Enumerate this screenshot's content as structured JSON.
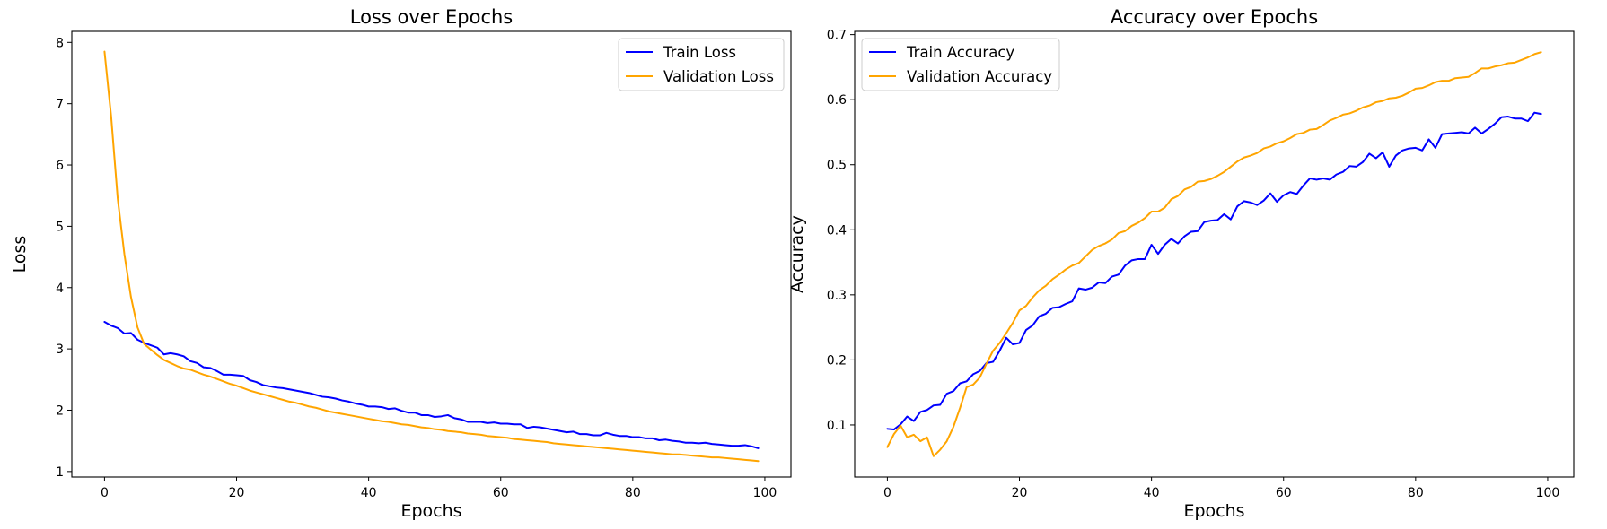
{
  "chart_data": [
    {
      "type": "line",
      "title": "Loss over Epochs",
      "xlabel": "Epochs",
      "ylabel": "Loss",
      "xlim": [
        -4.95,
        103.95
      ],
      "ylim": [
        0.91,
        8.18
      ],
      "xticks": [
        0,
        20,
        40,
        60,
        80,
        100
      ],
      "yticks": [
        1,
        2,
        3,
        4,
        5,
        6,
        7,
        8
      ],
      "grid": false,
      "legend_position": "upper right",
      "series": [
        {
          "name": "Train Loss",
          "color": "#0000ff",
          "x": [
            0,
            1,
            2,
            3,
            4,
            5,
            6,
            7,
            8,
            9,
            10,
            11,
            12,
            13,
            14,
            15,
            16,
            17,
            18,
            19,
            20,
            21,
            22,
            23,
            24,
            25,
            26,
            27,
            28,
            29,
            30,
            31,
            32,
            33,
            34,
            35,
            36,
            37,
            38,
            39,
            40,
            41,
            42,
            43,
            44,
            45,
            46,
            47,
            48,
            49,
            50,
            51,
            52,
            53,
            54,
            55,
            56,
            57,
            58,
            59,
            60,
            61,
            62,
            63,
            64,
            65,
            66,
            67,
            68,
            69,
            70,
            71,
            72,
            73,
            74,
            75,
            76,
            77,
            78,
            79,
            80,
            81,
            82,
            83,
            84,
            85,
            86,
            87,
            88,
            89,
            90,
            91,
            92,
            93,
            94,
            95,
            96,
            97,
            98,
            99
          ],
          "y": [
            3.44,
            3.38,
            3.34,
            3.25,
            3.26,
            3.15,
            3.1,
            3.06,
            3.02,
            2.91,
            2.93,
            2.91,
            2.88,
            2.8,
            2.77,
            2.7,
            2.69,
            2.64,
            2.58,
            2.58,
            2.57,
            2.56,
            2.49,
            2.46,
            2.41,
            2.39,
            2.37,
            2.36,
            2.34,
            2.32,
            2.3,
            2.28,
            2.25,
            2.22,
            2.21,
            2.19,
            2.16,
            2.14,
            2.11,
            2.09,
            2.06,
            2.06,
            2.05,
            2.02,
            2.03,
            1.99,
            1.96,
            1.96,
            1.92,
            1.92,
            1.89,
            1.9,
            1.92,
            1.87,
            1.85,
            1.81,
            1.81,
            1.81,
            1.79,
            1.8,
            1.78,
            1.78,
            1.77,
            1.77,
            1.71,
            1.73,
            1.72,
            1.7,
            1.68,
            1.66,
            1.64,
            1.65,
            1.61,
            1.61,
            1.59,
            1.59,
            1.63,
            1.6,
            1.58,
            1.58,
            1.56,
            1.56,
            1.54,
            1.54,
            1.51,
            1.52,
            1.5,
            1.49,
            1.47,
            1.47,
            1.46,
            1.47,
            1.45,
            1.44,
            1.43,
            1.42,
            1.42,
            1.43,
            1.41,
            1.38
          ]
        },
        {
          "name": "Validation Loss",
          "color": "#ffa500",
          "x": [
            0,
            1,
            2,
            3,
            4,
            5,
            6,
            7,
            8,
            9,
            10,
            11,
            12,
            13,
            14,
            15,
            16,
            17,
            18,
            19,
            20,
            21,
            22,
            23,
            24,
            25,
            26,
            27,
            28,
            29,
            30,
            31,
            32,
            33,
            34,
            35,
            36,
            37,
            38,
            39,
            40,
            41,
            42,
            43,
            44,
            45,
            46,
            47,
            48,
            49,
            50,
            51,
            52,
            53,
            54,
            55,
            56,
            57,
            58,
            59,
            60,
            61,
            62,
            63,
            64,
            65,
            66,
            67,
            68,
            69,
            70,
            71,
            72,
            73,
            74,
            75,
            76,
            77,
            78,
            79,
            80,
            81,
            82,
            83,
            84,
            85,
            86,
            87,
            88,
            89,
            90,
            91,
            92,
            93,
            94,
            95,
            96,
            97,
            98,
            99
          ],
          "y": [
            7.85,
            6.8,
            5.45,
            4.55,
            3.85,
            3.35,
            3.08,
            2.99,
            2.9,
            2.82,
            2.77,
            2.72,
            2.68,
            2.66,
            2.62,
            2.58,
            2.55,
            2.51,
            2.47,
            2.43,
            2.4,
            2.36,
            2.32,
            2.29,
            2.26,
            2.23,
            2.2,
            2.17,
            2.14,
            2.12,
            2.09,
            2.06,
            2.04,
            2.01,
            1.98,
            1.96,
            1.94,
            1.92,
            1.9,
            1.88,
            1.86,
            1.84,
            1.82,
            1.81,
            1.79,
            1.77,
            1.76,
            1.74,
            1.72,
            1.71,
            1.69,
            1.68,
            1.66,
            1.65,
            1.64,
            1.62,
            1.61,
            1.6,
            1.58,
            1.57,
            1.56,
            1.55,
            1.53,
            1.52,
            1.51,
            1.5,
            1.49,
            1.48,
            1.46,
            1.45,
            1.44,
            1.43,
            1.42,
            1.41,
            1.4,
            1.39,
            1.38,
            1.37,
            1.36,
            1.35,
            1.34,
            1.33,
            1.32,
            1.31,
            1.3,
            1.29,
            1.28,
            1.28,
            1.27,
            1.26,
            1.25,
            1.24,
            1.23,
            1.23,
            1.22,
            1.21,
            1.2,
            1.19,
            1.18,
            1.17
          ]
        }
      ]
    },
    {
      "type": "line",
      "title": "Accuracy over Epochs",
      "xlabel": "Epochs",
      "ylabel": "Accuracy",
      "xlim": [
        -4.95,
        103.95
      ],
      "ylim": [
        0.02,
        0.705
      ],
      "xticks": [
        0,
        20,
        40,
        60,
        80,
        100
      ],
      "yticks": [
        0.1,
        0.2,
        0.3,
        0.4,
        0.5,
        0.6,
        0.7
      ],
      "grid": false,
      "legend_position": "upper left",
      "series": [
        {
          "name": "Train Accuracy",
          "color": "#0000ff",
          "x": [
            0,
            1,
            2,
            3,
            4,
            5,
            6,
            7,
            8,
            9,
            10,
            11,
            12,
            13,
            14,
            15,
            16,
            17,
            18,
            19,
            20,
            21,
            22,
            23,
            24,
            25,
            26,
            27,
            28,
            29,
            30,
            31,
            32,
            33,
            34,
            35,
            36,
            37,
            38,
            39,
            40,
            41,
            42,
            43,
            44,
            45,
            46,
            47,
            48,
            49,
            50,
            51,
            52,
            53,
            54,
            55,
            56,
            57,
            58,
            59,
            60,
            61,
            62,
            63,
            64,
            65,
            66,
            67,
            68,
            69,
            70,
            71,
            72,
            73,
            74,
            75,
            76,
            77,
            78,
            79,
            80,
            81,
            82,
            83,
            84,
            85,
            86,
            87,
            88,
            89,
            90,
            91,
            92,
            93,
            94,
            95,
            96,
            97,
            98,
            99
          ],
          "y": [
            0.094,
            0.093,
            0.101,
            0.113,
            0.106,
            0.12,
            0.123,
            0.13,
            0.131,
            0.148,
            0.152,
            0.164,
            0.167,
            0.178,
            0.183,
            0.195,
            0.197,
            0.214,
            0.234,
            0.224,
            0.226,
            0.246,
            0.253,
            0.267,
            0.271,
            0.28,
            0.281,
            0.286,
            0.29,
            0.31,
            0.308,
            0.311,
            0.319,
            0.318,
            0.328,
            0.331,
            0.345,
            0.353,
            0.355,
            0.355,
            0.377,
            0.363,
            0.377,
            0.386,
            0.379,
            0.39,
            0.397,
            0.398,
            0.412,
            0.414,
            0.415,
            0.424,
            0.416,
            0.436,
            0.444,
            0.442,
            0.438,
            0.445,
            0.456,
            0.443,
            0.453,
            0.458,
            0.455,
            0.468,
            0.479,
            0.477,
            0.479,
            0.477,
            0.485,
            0.489,
            0.498,
            0.497,
            0.504,
            0.517,
            0.51,
            0.519,
            0.497,
            0.514,
            0.522,
            0.525,
            0.526,
            0.522,
            0.539,
            0.526,
            0.547,
            0.548,
            0.549,
            0.55,
            0.548,
            0.557,
            0.548,
            0.555,
            0.563,
            0.573,
            0.574,
            0.571,
            0.571,
            0.567,
            0.58,
            0.578
          ]
        },
        {
          "name": "Validation Accuracy",
          "color": "#ffa500",
          "x": [
            0,
            1,
            2,
            3,
            4,
            5,
            6,
            7,
            8,
            9,
            10,
            11,
            12,
            13,
            14,
            15,
            16,
            17,
            18,
            19,
            20,
            21,
            22,
            23,
            24,
            25,
            26,
            27,
            28,
            29,
            30,
            31,
            32,
            33,
            34,
            35,
            36,
            37,
            38,
            39,
            40,
            41,
            42,
            43,
            44,
            45,
            46,
            47,
            48,
            49,
            50,
            51,
            52,
            53,
            54,
            55,
            56,
            57,
            58,
            59,
            60,
            61,
            62,
            63,
            64,
            65,
            66,
            67,
            68,
            69,
            70,
            71,
            72,
            73,
            74,
            75,
            76,
            77,
            78,
            79,
            80,
            81,
            82,
            83,
            84,
            85,
            86,
            87,
            88,
            89,
            90,
            91,
            92,
            93,
            94,
            95,
            96,
            97,
            98,
            99
          ],
          "y": [
            0.066,
            0.086,
            0.099,
            0.081,
            0.085,
            0.075,
            0.081,
            0.052,
            0.062,
            0.075,
            0.097,
            0.126,
            0.158,
            0.162,
            0.173,
            0.194,
            0.214,
            0.226,
            0.241,
            0.257,
            0.276,
            0.283,
            0.296,
            0.307,
            0.314,
            0.324,
            0.331,
            0.339,
            0.345,
            0.349,
            0.359,
            0.369,
            0.375,
            0.379,
            0.385,
            0.395,
            0.398,
            0.406,
            0.411,
            0.418,
            0.428,
            0.428,
            0.434,
            0.447,
            0.452,
            0.462,
            0.466,
            0.474,
            0.475,
            0.478,
            0.483,
            0.489,
            0.497,
            0.505,
            0.511,
            0.514,
            0.518,
            0.525,
            0.528,
            0.533,
            0.536,
            0.541,
            0.547,
            0.549,
            0.554,
            0.555,
            0.561,
            0.568,
            0.572,
            0.577,
            0.579,
            0.583,
            0.588,
            0.591,
            0.596,
            0.598,
            0.602,
            0.603,
            0.606,
            0.611,
            0.617,
            0.618,
            0.622,
            0.627,
            0.629,
            0.629,
            0.633,
            0.634,
            0.635,
            0.641,
            0.648,
            0.648,
            0.651,
            0.653,
            0.656,
            0.657,
            0.661,
            0.665,
            0.67,
            0.673
          ]
        }
      ]
    }
  ]
}
